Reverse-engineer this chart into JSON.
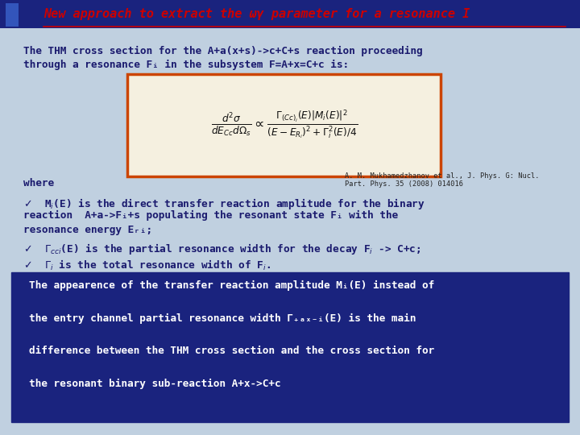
{
  "title": "New approach to extract the ωγ parameter for a resonance I",
  "header_bar_color": "#1a237e",
  "title_color": "#cc0000",
  "slide_bg": "#c0d0e0",
  "formula_box_edge": "#cc4400",
  "formula_box_face": "#f5f0e0",
  "bottom_box_bg": "#1a237e",
  "bottom_box_text_color": "#ffffff",
  "text_color": "#1a1a6e",
  "line1": "The THM cross section for the A+a(x+s)->c+C+s reaction proceeding",
  "line2": "through a resonance Fᵢ in the subsystem F=A+x=C+c is:",
  "ref_line1": "A. M. Mukhamedzhanov et al., J. Phys. G: Nucl.",
  "ref_line2": "Part. Phys. 35 (2008) 014016",
  "where": "where",
  "bottom_lines": [
    "The appearence of the transfer reaction amplitude Mᵢ(E) instead of",
    "the entry channel partial resonance width Γ₊ₐₓ₋ᵢ(E) is the main",
    "difference between the THM cross section and the cross section for",
    "the resonant binary sub-reaction A+x->C+c"
  ]
}
